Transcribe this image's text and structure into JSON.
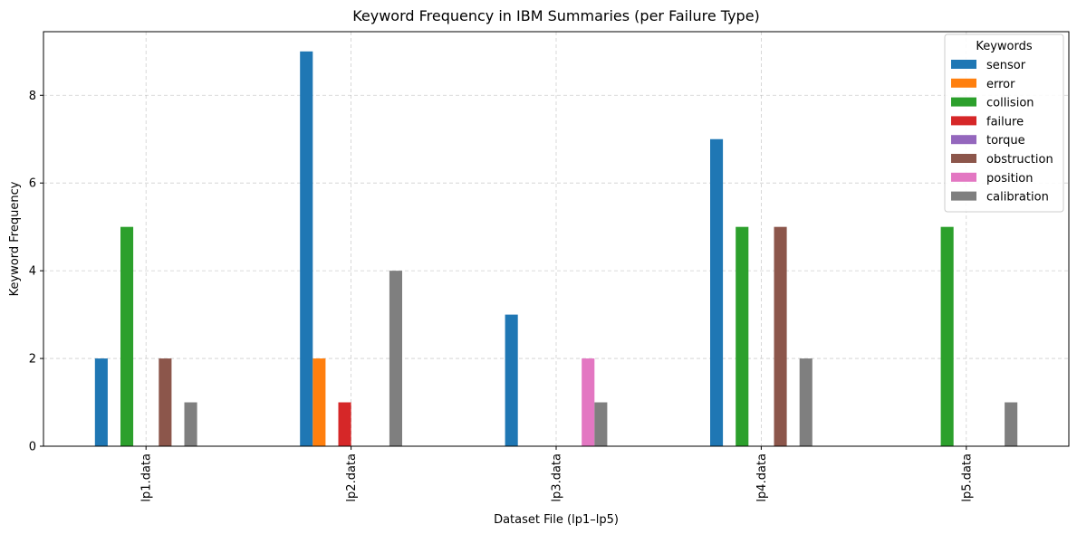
{
  "colors": {
    "sensor": "#1f77b4",
    "error": "#ff7f0e",
    "collision": "#2ca02c",
    "failure": "#d62728",
    "torque": "#9467bd",
    "obstruction": "#8c564b",
    "position": "#e377c2",
    "calibration": "#7f7f7f"
  },
  "chart_data": {
    "type": "bar",
    "title": "Keyword Frequency in IBM Summaries (per Failure Type)",
    "xlabel": "Dataset File (lp1–lp5)",
    "ylabel": "Keyword Frequency",
    "categories": [
      "lp1.data",
      "lp2.data",
      "lp3.data",
      "lp4.data",
      "lp5.data"
    ],
    "ylim": [
      0,
      9.45
    ],
    "yticks": [
      0,
      2,
      4,
      6,
      8
    ],
    "grid": true,
    "legend": {
      "title": "Keywords",
      "placement": "top-right"
    },
    "series": [
      {
        "name": "sensor",
        "values": [
          2,
          9,
          3,
          7,
          0
        ]
      },
      {
        "name": "error",
        "values": [
          0,
          2,
          0,
          0,
          0
        ]
      },
      {
        "name": "collision",
        "values": [
          5,
          0,
          0,
          5,
          5
        ]
      },
      {
        "name": "failure",
        "values": [
          0,
          1,
          0,
          0,
          0
        ]
      },
      {
        "name": "torque",
        "values": [
          0,
          0,
          0,
          0,
          0
        ]
      },
      {
        "name": "obstruction",
        "values": [
          2,
          0,
          0,
          5,
          0
        ]
      },
      {
        "name": "position",
        "values": [
          0,
          0,
          2,
          0,
          0
        ]
      },
      {
        "name": "calibration",
        "values": [
          1,
          4,
          1,
          2,
          1
        ]
      }
    ]
  }
}
